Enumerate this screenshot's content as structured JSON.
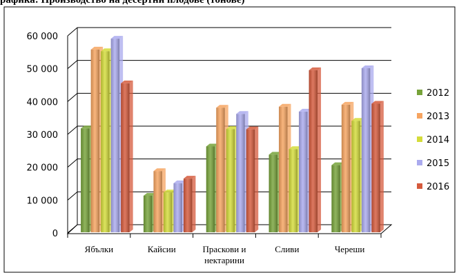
{
  "chart_data": {
    "type": "bar",
    "title": "рафика: Производство на десертни плодове (тонове)",
    "xlabel": "",
    "ylabel": "",
    "categories": [
      "Ябълки",
      "Кайсии",
      "Праскови и\nнектарини",
      "Сливи",
      "Череши"
    ],
    "series": [
      {
        "name": "2012",
        "color": "#77a33a",
        "values": [
          31000,
          10500,
          25500,
          23000,
          19800
        ]
      },
      {
        "name": "2013",
        "color": "#f6a460",
        "values": [
          55000,
          18000,
          37300,
          37600,
          38200
        ]
      },
      {
        "name": "2014",
        "color": "#d4dc3a",
        "values": [
          54500,
          11500,
          30800,
          24700,
          33300
        ]
      },
      {
        "name": "2015",
        "color": "#aaaaee",
        "values": [
          58300,
          14300,
          35400,
          36100,
          49300
        ]
      },
      {
        "name": "2016",
        "color": "#d55a3c",
        "values": [
          44700,
          15700,
          30700,
          48700,
          38500
        ]
      }
    ],
    "y_ticks": [
      "0",
      "10 000",
      "20 000",
      "30 000",
      "40 000",
      "50 000",
      "60 000"
    ],
    "ylim": [
      0,
      60000
    ],
    "grid": true,
    "legend_position": "right"
  }
}
